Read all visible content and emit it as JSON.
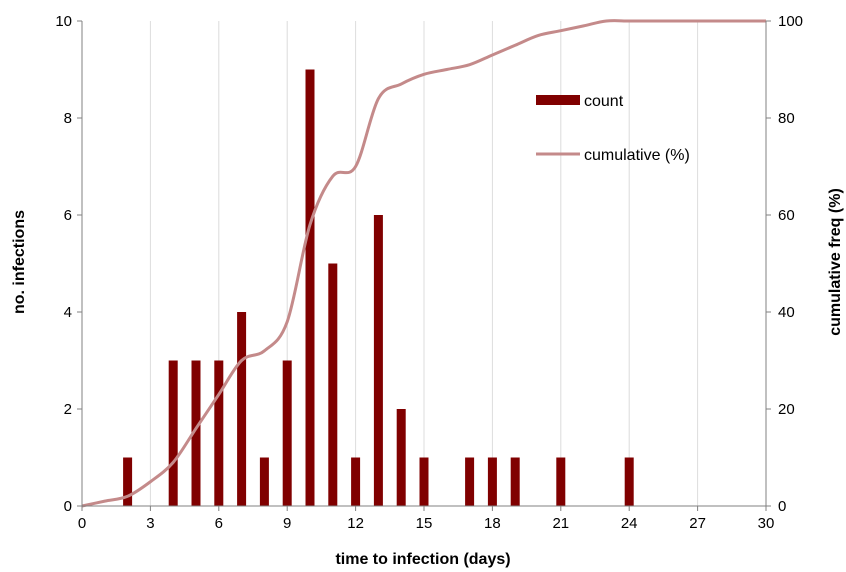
{
  "chart_data": {
    "type": "bar",
    "xlabel": "time to infection (days)",
    "ylabel": "no. infections",
    "y2label": "cumulative freq (%)",
    "xlim": [
      0,
      30
    ],
    "ylim": [
      0,
      10
    ],
    "y2lim": [
      0,
      100
    ],
    "xticks": [
      0,
      3,
      6,
      9,
      12,
      15,
      18,
      21,
      24,
      27,
      30
    ],
    "yticks": [
      0,
      2,
      4,
      6,
      8,
      10
    ],
    "y2ticks": [
      0,
      20,
      40,
      60,
      80,
      100
    ],
    "grid": "vertical",
    "legend_position": "top-right",
    "series": [
      {
        "name": "count",
        "kind": "bar",
        "color": "#800000",
        "x": [
          2,
          4,
          5,
          6,
          7,
          8,
          9,
          10,
          11,
          12,
          13,
          14,
          15,
          17,
          18,
          19,
          21,
          24
        ],
        "values": [
          1,
          3,
          3,
          3,
          4,
          1,
          3,
          9,
          5,
          1,
          6,
          2,
          1,
          1,
          1,
          1,
          1,
          1
        ]
      },
      {
        "name": "cumulative (%)",
        "kind": "line",
        "axis": "right",
        "color": "#c48a8a",
        "x": [
          0,
          1,
          2,
          3,
          4,
          5,
          6,
          7,
          8,
          9,
          10,
          11,
          12,
          13,
          14,
          15,
          16,
          17,
          18,
          19,
          20,
          21,
          22,
          23,
          24,
          25,
          26,
          27,
          28,
          29,
          30
        ],
        "values": [
          0,
          1,
          2,
          5,
          9,
          16,
          23,
          30,
          32,
          38,
          58,
          68,
          70,
          84,
          87,
          89,
          90,
          91,
          93,
          95,
          97,
          98,
          99,
          100,
          100,
          100,
          100,
          100,
          100,
          100,
          100
        ]
      }
    ]
  }
}
